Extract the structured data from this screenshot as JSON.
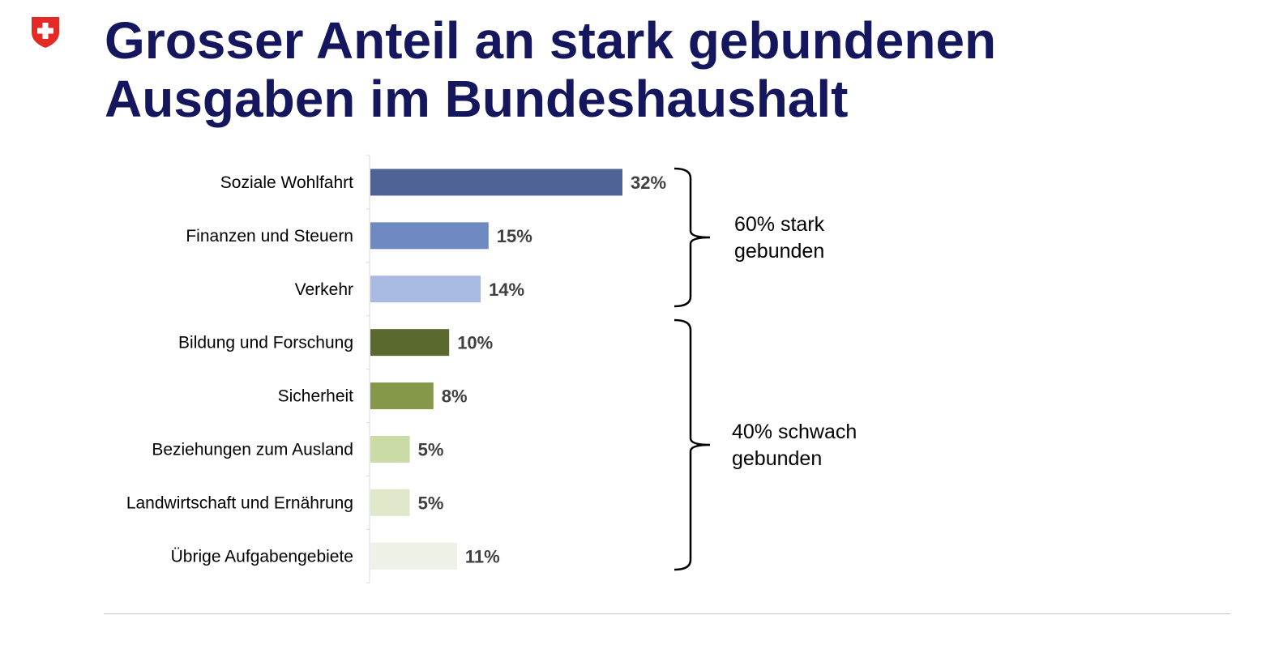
{
  "title": {
    "line1": "Grosser Anteil an stark gebundenen",
    "line2": "Ausgaben im Bundeshaushalt"
  },
  "logo_icon": "swiss-coat-of-arms-icon",
  "colors": {
    "title": "#14165e",
    "logo_red": "#e32a25"
  },
  "chart_data": {
    "type": "bar",
    "orientation": "horizontal",
    "categories": [
      "Soziale Wohlfahrt",
      "Finanzen und Steuern",
      "Verkehr",
      "Bildung und Forschung",
      "Sicherheit",
      "Beziehungen zum Ausland",
      "Landwirtschaft und Ernährung",
      "Übrige Aufgabengebiete"
    ],
    "values": [
      32,
      15,
      14,
      10,
      8,
      5,
      5,
      11
    ],
    "value_labels": [
      "32%",
      "15%",
      "14%",
      "10%",
      "8%",
      "5%",
      "5%",
      "11%"
    ],
    "bar_colors": [
      "#4f6397",
      "#6f89c3",
      "#a8b9e2",
      "#5a6a2e",
      "#85984a",
      "#cbdba5",
      "#dfe8ca",
      "#eef1e6"
    ],
    "xlim": [
      0,
      32
    ],
    "groups": [
      {
        "label_line1": "60% stark",
        "label_line2": "gebunden",
        "from_index": 0,
        "to_index": 2
      },
      {
        "label_line1": "40% schwach",
        "label_line2": "gebunden",
        "from_index": 3,
        "to_index": 7
      }
    ]
  }
}
